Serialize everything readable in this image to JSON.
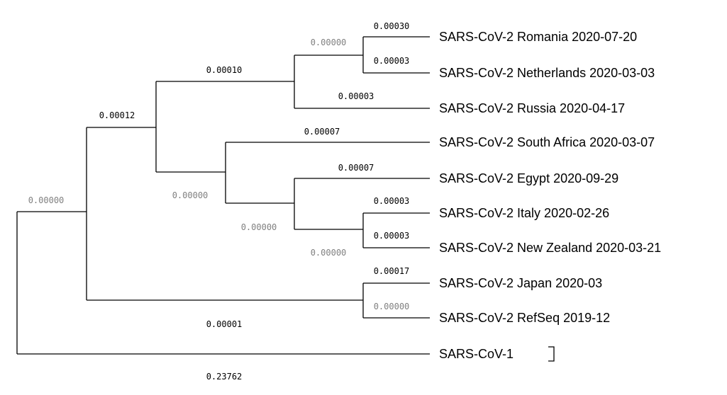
{
  "tree": {
    "taxa": [
      "SARS-CoV-2 Romania 2020-07-20",
      "SARS-CoV-2 Netherlands 2020-03-03",
      "SARS-CoV-2 Russia 2020-04-17",
      "SARS-CoV-2 South Africa 2020-03-07",
      "SARS-CoV-2 Egypt 2020-09-29",
      "SARS-CoV-2 Italy 2020-02-26",
      "SARS-CoV-2 New Zealand 2020-03-21",
      "SARS-CoV-2 Japan 2020-03",
      "SARS-CoV-2 RefSeq 2019-12",
      "SARS-CoV-1"
    ],
    "branch_lengths": {
      "romania": "0.00030",
      "netherlands": "0.00003",
      "romania_netherlands_clade": "0.00000",
      "russia": "0.00003",
      "europe_clade": "0.00010",
      "south_africa": "0.00007",
      "egypt": "0.00007",
      "italy": "0.00003",
      "new_zealand": "0.00003",
      "italy_nz_clade": "0.00000",
      "egypt_clade": "0.00000",
      "south_africa_clade": "0.00000",
      "inner_clade": "0.00012",
      "japan": "0.00017",
      "refseq": "0.00000",
      "japan_refseq_clade": "0.00001",
      "sars_cov_2_clade": "0.00000",
      "sars_cov_1": "0.23762"
    },
    "colors": {
      "branch": "#000000",
      "nonzero_length": "#000000",
      "zero_length": "#808080"
    }
  }
}
